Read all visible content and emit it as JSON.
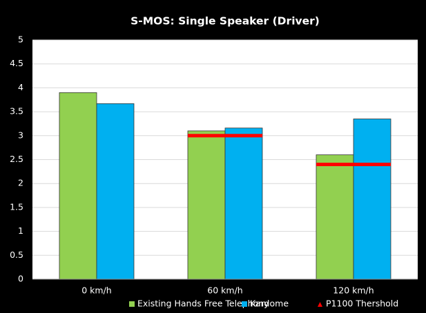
{
  "chart_data": {
    "type": "bar",
    "title": "S-MOS: Single Speaker (Driver)",
    "categories": [
      "0 km/h",
      "60 km/h",
      "120 km/h"
    ],
    "series": [
      {
        "name": "Existing Hands Free Telephony",
        "color": "#92d050",
        "type": "bar",
        "values": [
          3.9,
          3.1,
          2.6
        ]
      },
      {
        "name": "Kardome",
        "color": "#00b0f0",
        "type": "bar",
        "values": [
          3.67,
          3.16,
          3.35
        ]
      },
      {
        "name": "P1100 Thershold",
        "color": "#ff0000",
        "type": "threshold",
        "values": [
          null,
          3.0,
          2.4
        ]
      }
    ],
    "ylim": [
      0,
      5
    ],
    "yticks": [
      0,
      0.5,
      1,
      1.5,
      2,
      2.5,
      3,
      3.5,
      4,
      4.5,
      5
    ],
    "grid": true,
    "legend": "bottom"
  }
}
